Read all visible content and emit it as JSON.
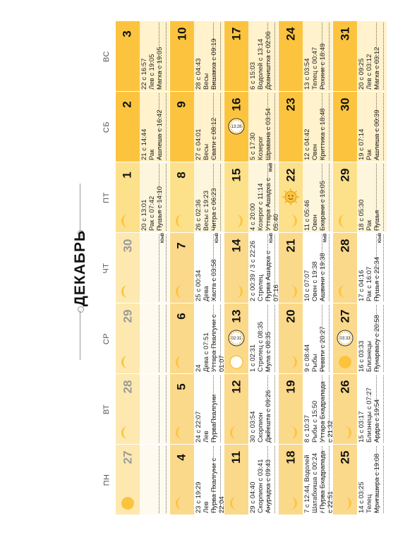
{
  "month": "ДЕКАБРЬ",
  "weekdays": [
    "ПН",
    "ВТ",
    "СР",
    "ЧТ",
    "ПТ",
    "СБ",
    "ВС"
  ],
  "colors": {
    "band_dark": "#fcc43e",
    "band_mid": "#fde08a",
    "band_light": "#fbd98a",
    "body_light": "#fff2cc",
    "body_pale": "#fef6dc",
    "body_white": "#ffffff",
    "prev_band": "#fde9b0",
    "prev_body": "#fffaf0"
  },
  "weeks": [
    {
      "days": [
        {
          "num": "27",
          "prev": true,
          "moon": "full",
          "lines": []
        },
        {
          "num": "28",
          "prev": true,
          "moon": "wane",
          "lines": []
        },
        {
          "num": "29",
          "prev": true,
          "moon": "wane",
          "lines": []
        },
        {
          "num": "30",
          "prev": true,
          "moon": "wane",
          "lines": [],
          "tiny": "ЮнВ"
        },
        {
          "num": "1",
          "moon": "wane",
          "lines": [
            "20 с 13:01",
            "Рак с 07:42",
            "Пушья с 14:10"
          ]
        },
        {
          "num": "2",
          "moon": "wane",
          "lines": [
            "21 с 14:44",
            "Рак",
            "Ашлеша с 16:42"
          ]
        },
        {
          "num": "3",
          "moon": "wane",
          "lines": [
            "22 с 16:57",
            "Лев с 19:05",
            "Магха с 19:05"
          ]
        }
      ]
    },
    {
      "days": [
        {
          "num": "4",
          "moon": "wane",
          "lines": [
            "23 с 19:29",
            "Лев",
            "Пурва Пхалгуни с",
            "22:04"
          ]
        },
        {
          "num": "5",
          "moon": "wane",
          "lines": [
            "24 с 22:07",
            "Лев",
            "ПурваПхалгуни"
          ]
        },
        {
          "num": "6",
          "moon": "wane",
          "lines": [
            "24",
            "Дева с 07:51",
            "Уттара Пхалгуни с",
            "01:07"
          ]
        },
        {
          "num": "7",
          "moon": "wane",
          "lines": [
            "25 с 00:34",
            "Дева",
            "Хаста с 03:58"
          ],
          "tiny": "ЮнВ"
        },
        {
          "num": "8",
          "moon": "wane",
          "lines": [
            "26 с 02:36",
            "Весы с 19:23",
            "Читра с 06:23"
          ]
        },
        {
          "num": "9",
          "moon": "wane",
          "lines": [
            "27 с 04:01",
            "Весы",
            "Свати с 08:12"
          ]
        },
        {
          "num": "10",
          "moon": "wane",
          "lines": [
            "28 с 04:43",
            "Весы",
            "Вишакха с 09:19"
          ]
        }
      ]
    },
    {
      "days": [
        {
          "num": "11",
          "moon": "wane",
          "lines": [
            "29 с 04:40",
            "Скорпион с 03:41",
            "Анурадха с 09:43"
          ]
        },
        {
          "num": "12",
          "moon": "wane",
          "lines": [
            "30 с 03:54",
            "Скорпион",
            "Джйешта с 09:26"
          ]
        },
        {
          "num": "13",
          "moon": "new",
          "badge": "02:31",
          "lines": [
            "1 с 02:31",
            "Стрелец с 08:35",
            "Мула с 08:35"
          ]
        },
        {
          "num": "14",
          "moon": "wax",
          "lines": [
            "2 с 00:39 / 3 с 22:26",
            "Стрелец",
            "Пурва Ашадха с",
            "07:16"
          ],
          "tiny": "ЮнВ"
        },
        {
          "num": "15",
          "moon": "wax",
          "lines": [
            "4 с 20:00",
            "Козерог с 11:14",
            "Уттара Ашадха с",
            "05:40"
          ],
          "tiny": "МиВ"
        },
        {
          "num": "16",
          "moon": "wax",
          "badge": "13:28",
          "lines": [
            "5 с 17:30",
            "Козерог",
            "Шравана с 03:54"
          ]
        },
        {
          "num": "17",
          "moon": "wax",
          "lines": [
            "6 с 15:03",
            "Водолей с 13:14",
            "Дхаништха с 02:06"
          ]
        }
      ]
    },
    {
      "days": [
        {
          "num": "18",
          "moon": "wax",
          "lines": [
            "7 с 12:44, Водолей",
            "Шатабхиша с 00:24",
            "/ Пурва Бхадрапада",
            "с 22:51"
          ]
        },
        {
          "num": "19",
          "moon": "wax",
          "lines": [
            "8 с 10:37",
            "Рыбы с 15:50",
            "Уттара Бхадрапада",
            "с 21:32"
          ]
        },
        {
          "num": "20",
          "moon": "wax",
          "lines": [
            "9 с 08:44",
            "Рыбы",
            "Ревати с 20:27"
          ]
        },
        {
          "num": "21",
          "moon": "wax",
          "lines": [
            "10 с 07:07",
            "Овен с 19:38",
            "Ашвини с 19:38"
          ],
          "tiny": "МиВ"
        },
        {
          "num": "22",
          "moon": "wax",
          "badge": "sun",
          "lines": [
            "11 с 05:46",
            "Овен",
            "Бхарани с 19:05"
          ]
        },
        {
          "num": "23",
          "moon": "wax",
          "lines": [
            "12 с 04:42",
            "Овен",
            "Криттика с 18:48"
          ]
        },
        {
          "num": "24",
          "moon": "wax",
          "lines": [
            "13 с 03:54",
            "Телец с 00:47",
            "Рохини с 18:49"
          ]
        }
      ]
    },
    {
      "days": [
        {
          "num": "25",
          "moon": "wax",
          "lines": [
            "14 с 03:25",
            "Телец",
            "Мригашира с 19:08"
          ]
        },
        {
          "num": "26",
          "moon": "wax",
          "lines": [
            "15 с 03:17",
            "Близнецы с 07:27",
            "Ардра с 19:54"
          ]
        },
        {
          "num": "27",
          "moon": "full",
          "badge": "03:33",
          "lines": [
            "16 с 03:33",
            "Близнецы",
            "Пунарвасу с 20:58"
          ]
        },
        {
          "num": "28",
          "moon": "wane",
          "lines": [
            "17 с 04:16",
            "Рак с 16:07",
            "Пушья с 22:34"
          ],
          "tiny": "ЮнВ"
        },
        {
          "num": "29",
          "moon": "wane",
          "lines": [
            "18 с 05:30",
            "Рак",
            "Пушья"
          ]
        },
        {
          "num": "30",
          "moon": "wane",
          "lines": [
            "19 с 07:14",
            "Рак",
            "Ашлеша с 00:39"
          ]
        },
        {
          "num": "31",
          "moon": "wane",
          "lines": [
            "20 с 09:25",
            "Лев с 03:12",
            "Магха с 03:12"
          ]
        }
      ]
    }
  ]
}
